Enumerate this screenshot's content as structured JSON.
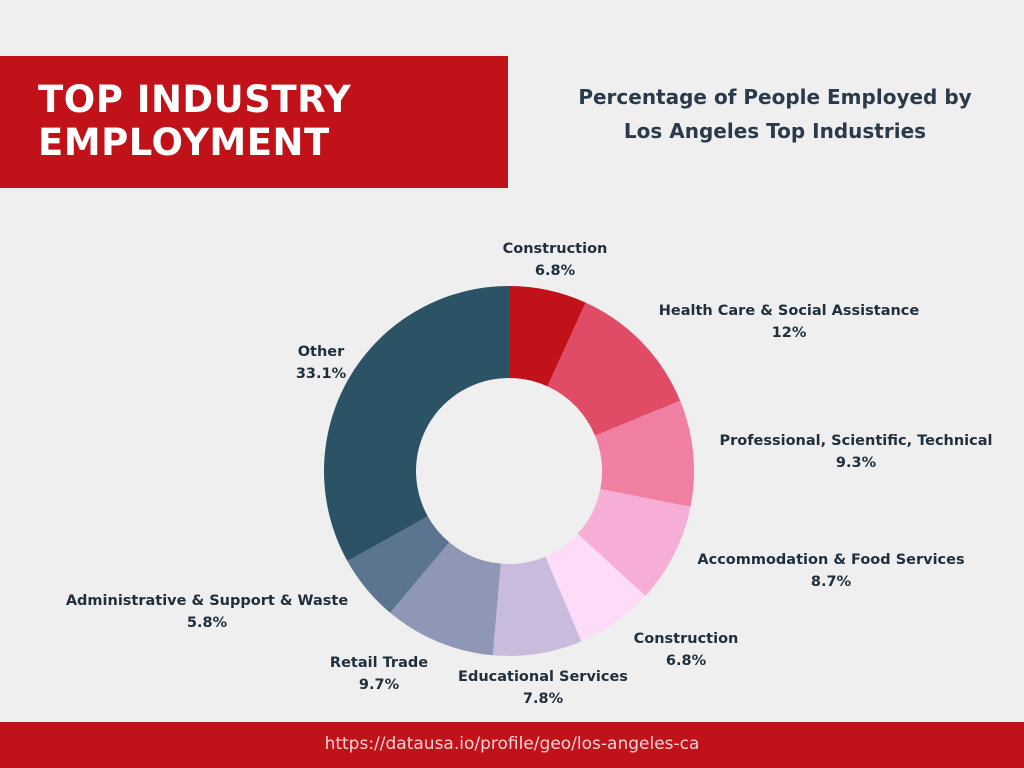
{
  "header": {
    "title_line1": "TOP INDUSTRY",
    "title_line2": "EMPLOYMENT",
    "subtitle_line1": "Percentage of People Employed by",
    "subtitle_line2": "Los Angeles Top Industries"
  },
  "footer": {
    "source_url": "https://datausa.io/profile/geo/los-angeles-ca"
  },
  "chart_data": {
    "type": "pie",
    "categories": [
      "Construction",
      "Health Care & Social Assistance",
      "Professional, Scientific, Technical",
      "Accommodation & Food Services",
      "Construction",
      "Educational Services",
      "Retail Trade",
      "Administrative & Support & Waste",
      "Other"
    ],
    "values": [
      6.8,
      12,
      9.3,
      8.7,
      6.8,
      7.8,
      9.7,
      5.8,
      33.1
    ],
    "value_labels": [
      "6.8%",
      "12%",
      "9.3%",
      "8.7%",
      "6.8%",
      "7.8%",
      "9.7%",
      "5.8%",
      "33.1%"
    ],
    "colors": [
      "#c1121a",
      "#e04b66",
      "#f07fa2",
      "#f7aed6",
      "#fcdcf8",
      "#c9bbdc",
      "#9096b5",
      "#5b7590",
      "#2c5266"
    ],
    "style": "donut",
    "start": "top, clockwise"
  }
}
